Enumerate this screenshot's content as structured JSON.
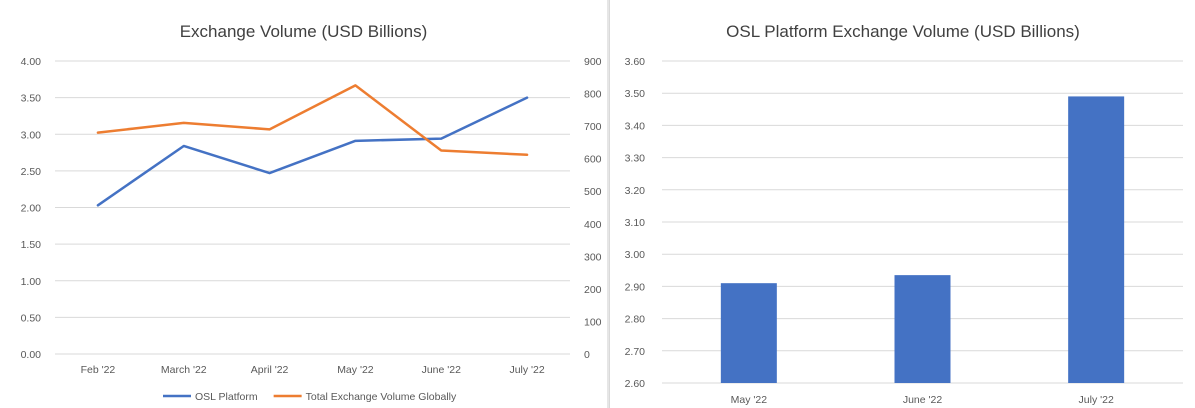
{
  "chart_data": [
    {
      "type": "line",
      "title": "Exchange Volume (USD Billions)",
      "categories": [
        "Feb '22",
        "March '22",
        "April '22",
        "May '22",
        "June '22",
        "July '22"
      ],
      "series": [
        {
          "name": "OSL Platform",
          "axis": "left",
          "color": "#4472C4",
          "values": [
            2.03,
            2.84,
            2.47,
            2.91,
            2.94,
            3.5
          ]
        },
        {
          "name": "Total Exchange Volume Globally",
          "axis": "right",
          "color": "#ED7D31",
          "values": [
            680,
            710,
            690,
            825,
            625,
            612
          ]
        }
      ],
      "yticks_left": [
        "4.00",
        "3.50",
        "3.00",
        "2.50",
        "2.00",
        "1.50",
        "1.00",
        "0.50",
        "0.00"
      ],
      "yticks_right": [
        "900",
        "800",
        "700",
        "600",
        "500",
        "400",
        "300",
        "200",
        "100",
        "0"
      ],
      "ylim_left": [
        0,
        4
      ],
      "ylim_right": [
        0,
        900
      ],
      "grid": true,
      "legend": "bottom"
    },
    {
      "type": "bar",
      "title": "OSL Platform Exchange Volume (USD Billions)",
      "categories": [
        "May '22",
        "June '22",
        "July '22"
      ],
      "values": [
        2.91,
        2.935,
        3.49
      ],
      "color": "#4472C4",
      "yticks": [
        "3.60",
        "3.50",
        "3.40",
        "3.30",
        "3.20",
        "3.10",
        "3.00",
        "2.90",
        "2.80",
        "2.70",
        "2.60"
      ],
      "ylim": [
        2.6,
        3.6
      ],
      "grid": true
    }
  ]
}
